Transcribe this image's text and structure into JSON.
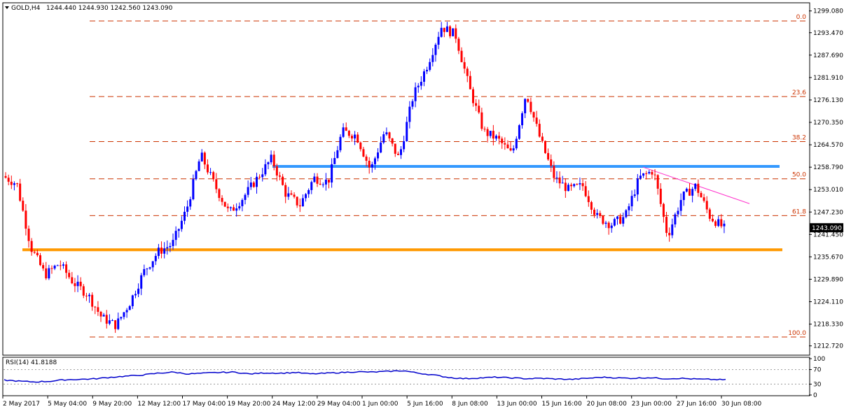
{
  "header": {
    "symbol": "GOLD,H4",
    "ohlc": "1244.440 1244.930 1242.560 1243.090"
  },
  "indicator": {
    "name": "RSI(14) 41.8188",
    "levels": [
      "100",
      "70",
      "30",
      "0"
    ]
  },
  "colors": {
    "bull": "#0000ff",
    "bear": "#ff0000",
    "fib": "#cc3300",
    "support": "#ff9900",
    "resistance": "#3399ff",
    "trendline": "#ff33cc",
    "rsi": "#0000cc"
  },
  "chart_data": {
    "type": "candlestick",
    "price_axis_ticks": [
      "1299.080",
      "1293.470",
      "1287.690",
      "1281.910",
      "1276.130",
      "1270.350",
      "1264.570",
      "1258.790",
      "1253.010",
      "1247.230",
      "1241.450",
      "1235.670",
      "1229.890",
      "1224.110",
      "1218.330",
      "1212.720"
    ],
    "current_price": "1243.090",
    "ylim": [
      1210.5,
      1301.0
    ],
    "time_labels": [
      "2 May 2017",
      "5 May 04:00",
      "9 May 20:00",
      "12 May 12:00",
      "17 May 04:00",
      "19 May 20:00",
      "24 May 12:00",
      "29 May 04:00",
      "1 Jun 00:00",
      "5 Jun 16:00",
      "8 Jun 08:00",
      "13 Jun 00:00",
      "15 Jun 16:00",
      "20 Jun 08:00",
      "23 Jun 00:00",
      "27 Jun 16:00",
      "30 Jun 08:00"
    ],
    "fibonacci": [
      {
        "label": "0.0",
        "price": 1296.5
      },
      {
        "label": "23.6",
        "price": 1277.0
      },
      {
        "label": "38.2",
        "price": 1265.4
      },
      {
        "label": "50.0",
        "price": 1255.8
      },
      {
        "label": "61.8",
        "price": 1246.3
      },
      {
        "label": "100.0",
        "price": 1215.0
      }
    ],
    "support_level": 1237.5,
    "resistance_level": 1259.0,
    "trendline": {
      "start": [
        "23 Jun 00:00",
        1258.8
      ],
      "end": [
        "30 Jun 08:00",
        1249.4
      ]
    },
    "price_path": [
      1256.5,
      1254.5,
      1238,
      1231,
      1234,
      1229,
      1226,
      1220,
      1218,
      1224,
      1232,
      1237,
      1239,
      1248,
      1262,
      1254,
      1247,
      1251,
      1256,
      1261,
      1252,
      1249,
      1256,
      1255,
      1268,
      1267,
      1258,
      1268,
      1261,
      1277,
      1285,
      1295,
      1293,
      1279,
      1268,
      1266,
      1262,
      1278,
      1266,
      1256,
      1253,
      1254,
      1246,
      1244,
      1246,
      1256,
      1258,
      1241,
      1251,
      1254,
      1246,
      1243
    ],
    "rsi_path": [
      41,
      38,
      36,
      38,
      42,
      43,
      45,
      49,
      52,
      55,
      60,
      63,
      58,
      60,
      62,
      63,
      58,
      61,
      60,
      62,
      58,
      60,
      62,
      64,
      63,
      65,
      67,
      60,
      55,
      48,
      45,
      47,
      49,
      47,
      45,
      46,
      44,
      43,
      46,
      49,
      47,
      46,
      48,
      45,
      46,
      44,
      43,
      41.8
    ]
  }
}
